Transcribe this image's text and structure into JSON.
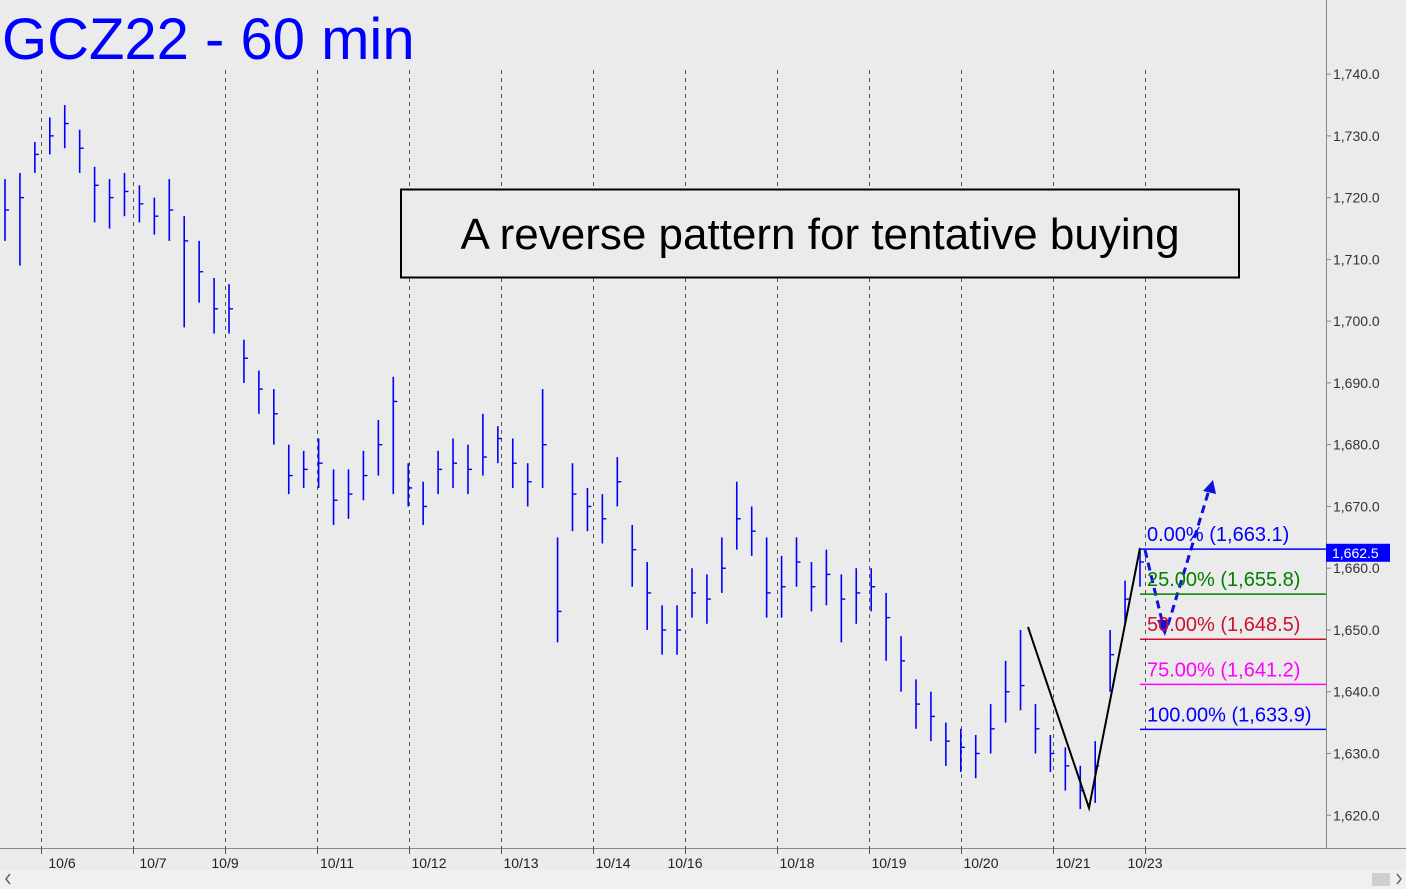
{
  "chart_data": {
    "type": "ohlc",
    "title": "GCZ22 - 60 min",
    "annotation": "A reverse pattern for tentative buying",
    "color": "#0000ff",
    "ylim": [
      1614.7,
      1752.0
    ],
    "yticks": [
      {
        "value": 1620,
        "label": "1,620.0"
      },
      {
        "value": 1630,
        "label": "1,630.0"
      },
      {
        "value": 1640,
        "label": "1,640.0"
      },
      {
        "value": 1650,
        "label": "1,650.0"
      },
      {
        "value": 1660,
        "label": "1,660.0"
      },
      {
        "value": 1670,
        "label": "1,670.0"
      },
      {
        "value": 1680,
        "label": "1,680.0"
      },
      {
        "value": 1690,
        "label": "1,690.0"
      },
      {
        "value": 1700,
        "label": "1,700.0"
      },
      {
        "value": 1710,
        "label": "1,710.0"
      },
      {
        "value": 1720,
        "label": "1,720.0"
      },
      {
        "value": 1730,
        "label": "1,730.0"
      },
      {
        "value": 1740,
        "label": "1,740.0"
      }
    ],
    "dates": [
      "10/6",
      "10/7",
      "10/9",
      "10/11",
      "10/12",
      "10/13",
      "10/14",
      "10/16",
      "10/18",
      "10/19",
      "10/20",
      "10/21",
      "10/23"
    ],
    "high": [
      1723,
      1724,
      1729,
      1733,
      1735,
      1731,
      1725,
      1723,
      1724,
      1722,
      1720,
      1723,
      1717,
      1713,
      1707,
      1706,
      1697,
      1692,
      1689,
      1680,
      1679,
      1681,
      1676,
      1676,
      1679,
      1684,
      1691,
      1677,
      1674,
      1679,
      1681,
      1680,
      1685,
      1683,
      1681,
      1677,
      1689,
      1665,
      1677,
      1673,
      1672,
      1678,
      1667,
      1661,
      1654,
      1654,
      1660,
      1659,
      1665,
      1674,
      1670,
      1665,
      1662,
      1665,
      1661,
      1663,
      1659,
      1660,
      1660,
      1656,
      1649,
      1642,
      1640,
      1635,
      1634,
      1633,
      1638,
      1645,
      1650,
      1638,
      1633,
      1631,
      1628,
      1632,
      1650,
      1658,
      1663
    ],
    "low": [
      1713,
      1709,
      1724,
      1727,
      1728,
      1724,
      1716,
      1715,
      1717,
      1716,
      1714,
      1713,
      1699,
      1703,
      1698,
      1698,
      1690,
      1685,
      1680,
      1672,
      1673,
      1673,
      1667,
      1668,
      1671,
      1675,
      1672,
      1670,
      1667,
      1672,
      1673,
      1672,
      1675,
      1677,
      1673,
      1670,
      1673,
      1648,
      1666,
      1666,
      1664,
      1670,
      1657,
      1650,
      1646,
      1646,
      1652,
      1651,
      1656,
      1663,
      1662,
      1652,
      1652,
      1657,
      1653,
      1654,
      1648,
      1651,
      1653,
      1645,
      1640,
      1634,
      1632,
      1628,
      1627,
      1626,
      1630,
      1635,
      1637,
      1630,
      1627,
      1624,
      1621,
      1622,
      1640,
      1651,
      1657
    ],
    "close": [
      1718,
      1720,
      1727,
      1730,
      1732,
      1728,
      1722,
      1720,
      1721,
      1719,
      1717,
      1718,
      1713,
      1708,
      1702,
      1702,
      1694,
      1689,
      1685,
      1675,
      1676,
      1677,
      1671,
      1672,
      1675,
      1680,
      1687,
      1673,
      1670,
      1676,
      1677,
      1676,
      1678,
      1681,
      1677,
      1674,
      1680,
      1653,
      1672,
      1670,
      1668,
      1674,
      1663,
      1656,
      1650,
      1650,
      1656,
      1655,
      1660,
      1668,
      1666,
      1656,
      1657,
      1661,
      1657,
      1659,
      1655,
      1656,
      1657,
      1652,
      1645,
      1638,
      1636,
      1632,
      1631,
      1630,
      1634,
      1640,
      1641,
      1634,
      1630,
      1628,
      1624,
      1628,
      1646,
      1655,
      1661
    ],
    "fib_levels": [
      {
        "label": "0.00% (1,663.1)",
        "value": 1663.1,
        "color": "#0000ff"
      },
      {
        "label": "25.00% (1,655.8)",
        "value": 1655.8,
        "color": "#008000"
      },
      {
        "label": "50.00% (1,648.5)",
        "value": 1648.5,
        "color": "#d01030"
      },
      {
        "label": "75.00% (1,641.2)",
        "value": 1641.2,
        "color": "#ff00ff"
      },
      {
        "label": "100.00% (1,633.9)",
        "value": 1633.9,
        "color": "#0000ff"
      }
    ],
    "last_price": {
      "value": 1662.5,
      "label": "1,662.5"
    }
  }
}
